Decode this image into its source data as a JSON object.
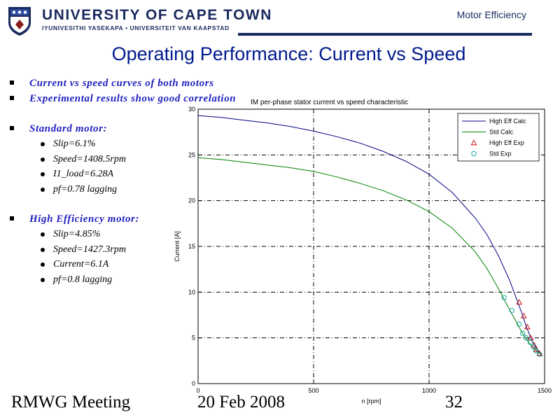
{
  "header": {
    "university": "UNIVERSITY OF CAPE TOWN",
    "subtitle": "IYUNIVESITHI YASEKAPA • UNIVERSITEIT VAN KAAPSTAD",
    "topic": "Motor Efficiency"
  },
  "slide_title": "Operating Performance: Current vs Speed",
  "bullets": {
    "b1": "Current vs speed curves of both motors",
    "b2": "Experimental results show good correlation",
    "standard": {
      "heading": "Standard motor:",
      "items": [
        "Slip=6.1%",
        "Speed=1408.5rpm",
        "I1_load=6.28A",
        "pf=0.78 lagging"
      ]
    },
    "higheff": {
      "heading": "High Efficiency motor:",
      "items": [
        "Slip=4.85%",
        "Speed=1427.3rpm",
        "Current=6.1A",
        "pf=0.8 lagging"
      ]
    }
  },
  "footer": {
    "left": "RMWG Meeting",
    "center": "20 Feb 2008",
    "page": "32"
  },
  "chart_data": {
    "type": "line",
    "title": "IM per-phase stator current vs speed characteristic",
    "xlabel": "n [rpm]",
    "ylabel": "Current [A]",
    "xlim": [
      0,
      1500
    ],
    "ylim": [
      0,
      30
    ],
    "xticks": [
      0,
      500,
      1000,
      1500
    ],
    "yticks": [
      0,
      5,
      10,
      15,
      20,
      25,
      30
    ],
    "grid": true,
    "grid_style": "dash-dot",
    "legend_position": "top-right",
    "series": [
      {
        "name": "High Eff Calc",
        "kind": "line",
        "color": "#000080",
        "x": [
          0,
          100,
          200,
          300,
          400,
          500,
          600,
          700,
          800,
          900,
          1000,
          1100,
          1200,
          1250,
          1300,
          1350,
          1400,
          1420,
          1440,
          1460,
          1480,
          1490
        ],
        "y": [
          29.3,
          29.1,
          28.8,
          28.5,
          28.1,
          27.6,
          27.0,
          26.3,
          25.4,
          24.3,
          22.9,
          20.9,
          18.1,
          16.3,
          14.0,
          11.2,
          7.8,
          6.3,
          5.0,
          4.0,
          3.3,
          3.0
        ]
      },
      {
        "name": "Std Calc",
        "kind": "line",
        "color": "#008000",
        "x": [
          0,
          100,
          200,
          300,
          400,
          500,
          600,
          700,
          800,
          900,
          1000,
          1100,
          1200,
          1250,
          1300,
          1350,
          1400,
          1420,
          1440,
          1460,
          1480,
          1490
        ],
        "y": [
          24.7,
          24.5,
          24.2,
          23.9,
          23.6,
          23.2,
          22.6,
          21.9,
          21.1,
          20.1,
          18.8,
          17.0,
          14.4,
          12.6,
          10.4,
          8.0,
          5.7,
          4.9,
          4.2,
          3.7,
          3.3,
          3.1
        ]
      },
      {
        "name": "High Eff Exp",
        "kind": "marker",
        "marker": "triangle",
        "color": "#cc0000",
        "x": [
          1390,
          1410,
          1425,
          1440,
          1455,
          1465,
          1478
        ],
        "y": [
          8.9,
          7.4,
          6.2,
          5.0,
          4.2,
          3.7,
          3.3
        ]
      },
      {
        "name": "Std Exp",
        "kind": "marker",
        "marker": "circle",
        "color": "#00a0a0",
        "x": [
          1325,
          1358,
          1390,
          1405,
          1420,
          1438,
          1452,
          1462,
          1478
        ],
        "y": [
          9.4,
          8.0,
          6.5,
          5.5,
          5.0,
          4.5,
          4.0,
          3.6,
          3.2
        ]
      }
    ]
  }
}
